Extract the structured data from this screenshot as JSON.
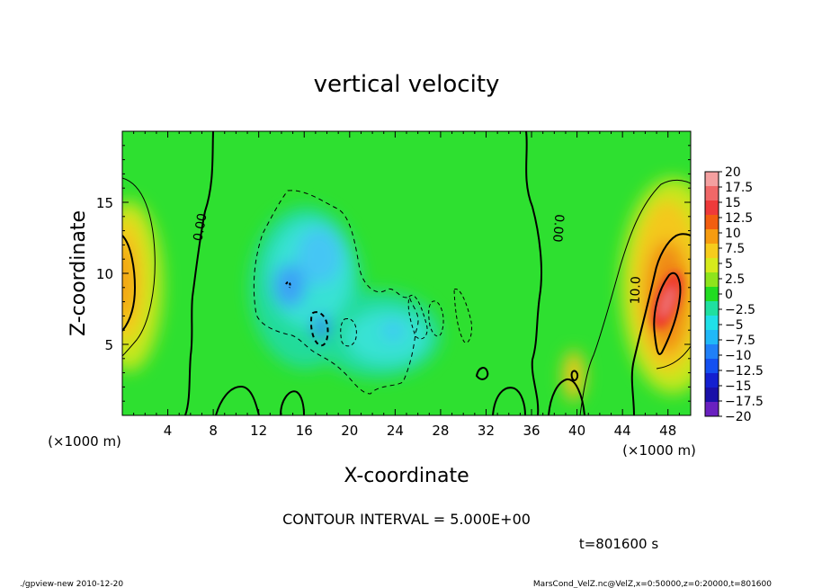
{
  "chart_data": {
    "type": "heatmap",
    "title": "vertical velocity",
    "xlabel": "X-coordinate",
    "ylabel": "Z-coordinate",
    "x_unit_label": "(×1000 m)",
    "z_unit_label": "(×1000 m)",
    "xlim": [
      0,
      50
    ],
    "zlim": [
      0,
      20
    ],
    "x_ticks": [
      4,
      8,
      12,
      16,
      20,
      24,
      28,
      32,
      36,
      40,
      44,
      48
    ],
    "z_ticks": [
      5,
      10,
      15
    ],
    "contour_interval_text": "CONTOUR INTERVAL = 5.000E+00",
    "time_text": "t=801600 s",
    "contour_labels": [
      {
        "text": "0.00",
        "x": 7.2,
        "z": 13.2,
        "angle": -80
      },
      {
        "text": "0.00",
        "x": 38.0,
        "z": 13.2,
        "angle": 95
      },
      {
        "text": "10.0",
        "x": 45.5,
        "z": 8.8,
        "angle": -88
      }
    ],
    "colorbar": {
      "levels": [
        "20",
        "17.5",
        "15",
        "12.5",
        "10",
        "7.5",
        "5",
        "2.5",
        "0",
        "−2.5",
        "−5",
        "−7.5",
        "−10",
        "−12.5",
        "−15",
        "−17.5",
        "−20"
      ],
      "colors": [
        "#f4a0a0",
        "#f06868",
        "#ee3a3a",
        "#f25e10",
        "#f69c10",
        "#f6cc1c",
        "#d6ea1c",
        "#8ee41c",
        "#22dc22",
        "#20e0a0",
        "#20e0e8",
        "#20b8f8",
        "#2080f8",
        "#1450f0",
        "#1420d0",
        "#1a10a8",
        "#6a20c0"
      ]
    },
    "features": [
      {
        "kind": "updraft",
        "x": 1.0,
        "z": 9.5,
        "w": 10
      },
      {
        "kind": "downdraft",
        "x": 16.0,
        "z": 11.0,
        "w": -8
      },
      {
        "kind": "downdraft",
        "x": 14.0,
        "z": 9.5,
        "w": -10
      },
      {
        "kind": "downdraft",
        "x": 17.5,
        "z": 6.3,
        "w": -11
      },
      {
        "kind": "downdraft",
        "x": 23.5,
        "z": 5.5,
        "w": -6
      },
      {
        "kind": "updraft",
        "x": 39.5,
        "z": 3.0,
        "w": 7
      },
      {
        "kind": "updraft",
        "x": 47.5,
        "z": 8.0,
        "w": 15
      }
    ]
  },
  "footer": {
    "left": "./gpview-new  2010-12-20",
    "right": "MarsCond_VelZ.nc@VelZ,x=0:50000,z=0:20000,t=801600"
  }
}
